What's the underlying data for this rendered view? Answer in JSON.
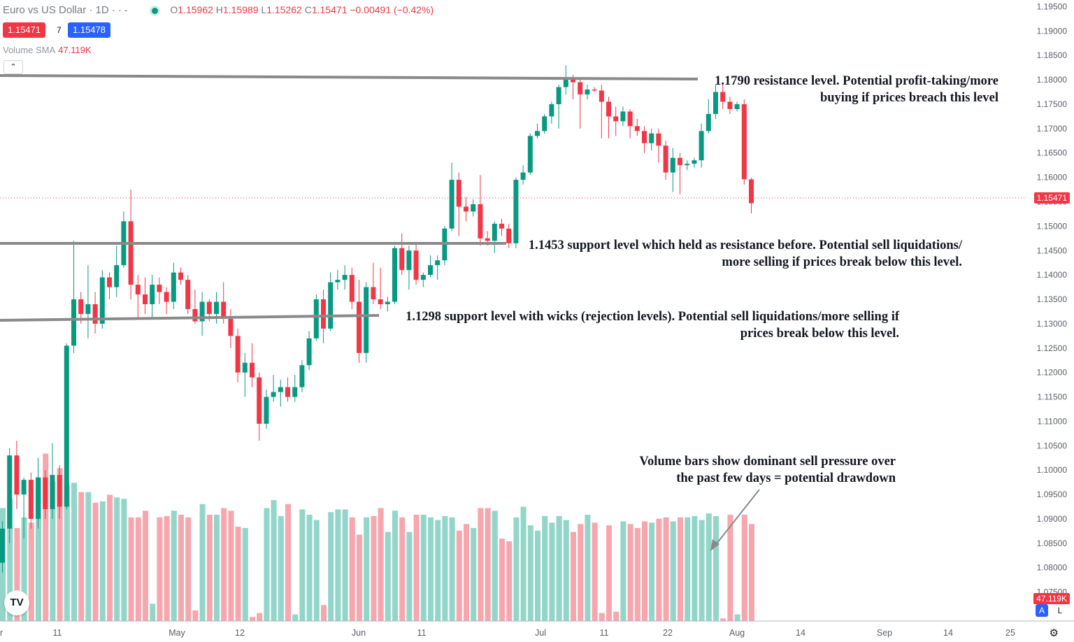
{
  "header": {
    "symbol": "Euro vs US Dollar · 1D · ·",
    "open_label": "O",
    "open": "1.15962",
    "high_label": "H",
    "high": "1.15989",
    "low_label": "L",
    "low": "1.15262",
    "close_label": "C",
    "close": "1.15471",
    "change": "−0.00491 (−0.42%)",
    "bid": "1.15471",
    "spread": "7",
    "ask": "1.15478",
    "volume_sma_label": "Volume SMA",
    "volume_sma_value": "47.119K",
    "collapse_icon": "chevron-up-icon"
  },
  "price_axis": {
    "ticks": [
      "1.19500",
      "1.19000",
      "1.18500",
      "1.18000",
      "1.17500",
      "1.17000",
      "1.16500",
      "1.16000",
      "1.15500",
      "1.15000",
      "1.14500",
      "1.14000",
      "1.13500",
      "1.13000",
      "1.12500",
      "1.12000",
      "1.11500",
      "1.11000",
      "1.10500",
      "1.10000",
      "1.09500",
      "1.09000",
      "1.08500",
      "1.08000",
      "1.07500"
    ],
    "last_price_label": "1.15471",
    "volume_label": "47.119K",
    "auto_btn": "A",
    "log_btn": "L"
  },
  "time_axis": {
    "labels": [
      "r",
      "11",
      "May",
      "12",
      "Jun",
      "11",
      "Jul",
      "11",
      "22",
      "Aug",
      "14",
      "Sep",
      "14",
      "25"
    ],
    "settings_icon": "gear-icon"
  },
  "annotations": {
    "resistance": [
      "1.1790 resistance level. Potential profit-taking/more",
      "buying if prices breach this level"
    ],
    "support_1453": [
      "1.1453 support level which held as resistance before. Potential sell liquidations/",
      "more selling if prices break below this level."
    ],
    "support_1298": [
      "1.1298 support level with wicks (rejection levels). Potential sell liquidations/more selling if",
      "prices break below this level."
    ],
    "volume": [
      "Volume bars show dominant sell pressure over",
      "the past few days = potential drawdown"
    ]
  },
  "colors": {
    "up": "#089981",
    "down": "#f23645",
    "vol_up": "#92d6c9",
    "vol_down": "#f8a6ad",
    "level_line": "#8a8a8a",
    "ask": "#2962ff"
  },
  "chart_data": {
    "type": "candlestick",
    "title": "Euro vs US Dollar · 1D",
    "y_range": [
      1.0725,
      1.1965
    ],
    "x_labels": [
      "r",
      "11",
      "May",
      "12",
      "Jun",
      "11",
      "Jul",
      "11",
      "22",
      "Aug",
      "14",
      "Sep",
      "14",
      "25"
    ],
    "levels": [
      1.179,
      1.1453,
      1.1298
    ],
    "last_price": 1.15471,
    "ohlc": [
      [
        1.081,
        1.0895,
        1.079,
        1.088
      ],
      [
        1.088,
        1.1045,
        1.085,
        1.103
      ],
      [
        1.103,
        1.106,
        1.092,
        1.095
      ],
      [
        1.095,
        1.0985,
        1.086,
        1.098
      ],
      [
        1.098,
        1.0995,
        1.088,
        1.09
      ],
      [
        1.09,
        1.1025,
        1.088,
        1.0985
      ],
      [
        1.0985,
        1.1,
        1.09,
        1.092
      ],
      [
        1.092,
        1.1055,
        1.09,
        1.099
      ],
      [
        1.099,
        1.101,
        1.09,
        1.0925
      ],
      [
        1.0925,
        1.126,
        1.092,
        1.1255
      ],
      [
        1.1255,
        1.147,
        1.124,
        1.135
      ],
      [
        1.135,
        1.1365,
        1.13,
        1.132
      ],
      [
        1.132,
        1.142,
        1.127,
        1.134
      ],
      [
        1.134,
        1.1365,
        1.128,
        1.13
      ],
      [
        1.13,
        1.141,
        1.129,
        1.1395
      ],
      [
        1.1395,
        1.1405,
        1.135,
        1.1375
      ],
      [
        1.1375,
        1.146,
        1.1355,
        1.142
      ],
      [
        1.142,
        1.153,
        1.1415,
        1.151
      ],
      [
        1.151,
        1.1575,
        1.135,
        1.138
      ],
      [
        1.138,
        1.14,
        1.131,
        1.136
      ],
      [
        1.136,
        1.1395,
        1.132,
        1.134
      ],
      [
        1.134,
        1.14,
        1.131,
        1.138
      ],
      [
        1.138,
        1.1395,
        1.134,
        1.1365
      ],
      [
        1.1365,
        1.1375,
        1.132,
        1.1345
      ],
      [
        1.1345,
        1.1425,
        1.133,
        1.1405
      ],
      [
        1.1405,
        1.1415,
        1.138,
        1.139
      ],
      [
        1.139,
        1.14,
        1.132,
        1.133
      ],
      [
        1.133,
        1.137,
        1.13,
        1.1305
      ],
      [
        1.1305,
        1.1365,
        1.1275,
        1.1345
      ],
      [
        1.1345,
        1.135,
        1.1305,
        1.132
      ],
      [
        1.132,
        1.1365,
        1.13,
        1.1345
      ],
      [
        1.1345,
        1.1385,
        1.13,
        1.131
      ],
      [
        1.131,
        1.133,
        1.125,
        1.1275
      ],
      [
        1.1275,
        1.129,
        1.118,
        1.12
      ],
      [
        1.12,
        1.124,
        1.115,
        1.122
      ],
      [
        1.122,
        1.126,
        1.117,
        1.119
      ],
      [
        1.119,
        1.12,
        1.106,
        1.1095
      ],
      [
        1.1095,
        1.1165,
        1.1085,
        1.115
      ],
      [
        1.115,
        1.1195,
        1.114,
        1.116
      ],
      [
        1.116,
        1.1185,
        1.113,
        1.117
      ],
      [
        1.117,
        1.119,
        1.114,
        1.115
      ],
      [
        1.115,
        1.1195,
        1.114,
        1.117
      ],
      [
        1.117,
        1.1225,
        1.116,
        1.1215
      ],
      [
        1.1215,
        1.1285,
        1.1205,
        1.127
      ],
      [
        1.127,
        1.136,
        1.1265,
        1.135
      ],
      [
        1.135,
        1.137,
        1.126,
        1.129
      ],
      [
        1.129,
        1.1405,
        1.1285,
        1.1385
      ],
      [
        1.1385,
        1.141,
        1.137,
        1.139
      ],
      [
        1.139,
        1.142,
        1.137,
        1.14
      ],
      [
        1.14,
        1.1415,
        1.133,
        1.1345
      ],
      [
        1.1345,
        1.139,
        1.122,
        1.124
      ],
      [
        1.124,
        1.1385,
        1.122,
        1.1375
      ],
      [
        1.1375,
        1.1425,
        1.134,
        1.135
      ],
      [
        1.135,
        1.1415,
        1.133,
        1.134
      ],
      [
        1.134,
        1.1355,
        1.1325,
        1.1345
      ],
      [
        1.1345,
        1.146,
        1.134,
        1.1455
      ],
      [
        1.1455,
        1.1485,
        1.14,
        1.141
      ],
      [
        1.141,
        1.146,
        1.137,
        1.145
      ],
      [
        1.145,
        1.1465,
        1.138,
        1.139
      ],
      [
        1.139,
        1.1405,
        1.1375,
        1.14
      ],
      [
        1.14,
        1.144,
        1.1395,
        1.142
      ],
      [
        1.142,
        1.144,
        1.139,
        1.143
      ],
      [
        1.143,
        1.15,
        1.142,
        1.1495
      ],
      [
        1.1495,
        1.163,
        1.149,
        1.1595
      ],
      [
        1.1595,
        1.161,
        1.148,
        1.154
      ],
      [
        1.154,
        1.156,
        1.151,
        1.153
      ],
      [
        1.153,
        1.1555,
        1.152,
        1.1545
      ],
      [
        1.1545,
        1.1605,
        1.146,
        1.1475
      ],
      [
        1.1475,
        1.149,
        1.146,
        1.147
      ],
      [
        1.147,
        1.151,
        1.1445,
        1.1505
      ],
      [
        1.1505,
        1.1515,
        1.148,
        1.1495
      ],
      [
        1.1495,
        1.1505,
        1.1455,
        1.1465
      ],
      [
        1.1465,
        1.16,
        1.1455,
        1.1595
      ],
      [
        1.1595,
        1.1625,
        1.1585,
        1.161
      ],
      [
        1.161,
        1.169,
        1.1605,
        1.1685
      ],
      [
        1.1685,
        1.171,
        1.168,
        1.1695
      ],
      [
        1.1695,
        1.173,
        1.169,
        1.1725
      ],
      [
        1.1725,
        1.1755,
        1.171,
        1.175
      ],
      [
        1.175,
        1.179,
        1.17,
        1.1785
      ],
      [
        1.1785,
        1.183,
        1.177,
        1.1805
      ],
      [
        1.1805,
        1.181,
        1.176,
        1.1795
      ],
      [
        1.1795,
        1.1805,
        1.17,
        1.177
      ],
      [
        1.177,
        1.179,
        1.176,
        1.178
      ],
      [
        1.178,
        1.1785,
        1.1775,
        1.1778
      ],
      [
        1.1778,
        1.179,
        1.168,
        1.1755
      ],
      [
        1.1755,
        1.1765,
        1.168,
        1.1725
      ],
      [
        1.1725,
        1.1745,
        1.1685,
        1.1715
      ],
      [
        1.1715,
        1.1745,
        1.1705,
        1.1735
      ],
      [
        1.1735,
        1.174,
        1.168,
        1.1705
      ],
      [
        1.1705,
        1.172,
        1.1685,
        1.1695
      ],
      [
        1.1695,
        1.1705,
        1.165,
        1.167
      ],
      [
        1.167,
        1.17,
        1.1655,
        1.169
      ],
      [
        1.169,
        1.17,
        1.163,
        1.1665
      ],
      [
        1.1665,
        1.1675,
        1.1595,
        1.161
      ],
      [
        1.161,
        1.166,
        1.157,
        1.164
      ],
      [
        1.164,
        1.165,
        1.1565,
        1.1625
      ],
      [
        1.1625,
        1.1635,
        1.1615,
        1.1628
      ],
      [
        1.1628,
        1.164,
        1.162,
        1.1635
      ],
      [
        1.1635,
        1.171,
        1.162,
        1.1695
      ],
      [
        1.1695,
        1.176,
        1.169,
        1.173
      ],
      [
        1.173,
        1.179,
        1.172,
        1.1775
      ],
      [
        1.1775,
        1.1795,
        1.174,
        1.1755
      ],
      [
        1.1755,
        1.1765,
        1.173,
        1.174
      ],
      [
        1.174,
        1.1755,
        1.1735,
        1.175
      ],
      [
        1.175,
        1.176,
        1.1585,
        1.1596
      ],
      [
        1.1596,
        1.1599,
        1.1526,
        1.1547
      ]
    ],
    "volume_k": [
      85,
      92,
      70,
      78,
      74,
      108,
      126,
      105,
      115,
      102,
      104,
      97,
      97,
      89,
      90,
      95,
      93,
      92,
      78,
      78,
      83,
      13,
      78,
      79,
      83,
      80,
      78,
      8,
      88,
      80,
      80,
      85,
      83,
      71,
      70,
      3,
      6,
      85,
      91,
      79,
      88,
      5,
      84,
      80,
      76,
      12,
      82,
      84,
      84,
      78,
      65,
      78,
      79,
      85,
      67,
      83,
      78,
      67,
      80,
      80,
      78,
      76,
      79,
      78,
      68,
      73,
      70,
      85,
      85,
      83,
      62,
      60,
      78,
      86,
      72,
      68,
      79,
      74,
      79,
      76,
      67,
      73,
      80,
      74,
      6,
      72,
      7,
      75,
      73,
      70,
      75,
      74,
      77,
      78,
      75,
      78,
      78,
      79,
      76,
      81,
      79,
      2,
      80,
      5,
      80,
      73
    ]
  }
}
